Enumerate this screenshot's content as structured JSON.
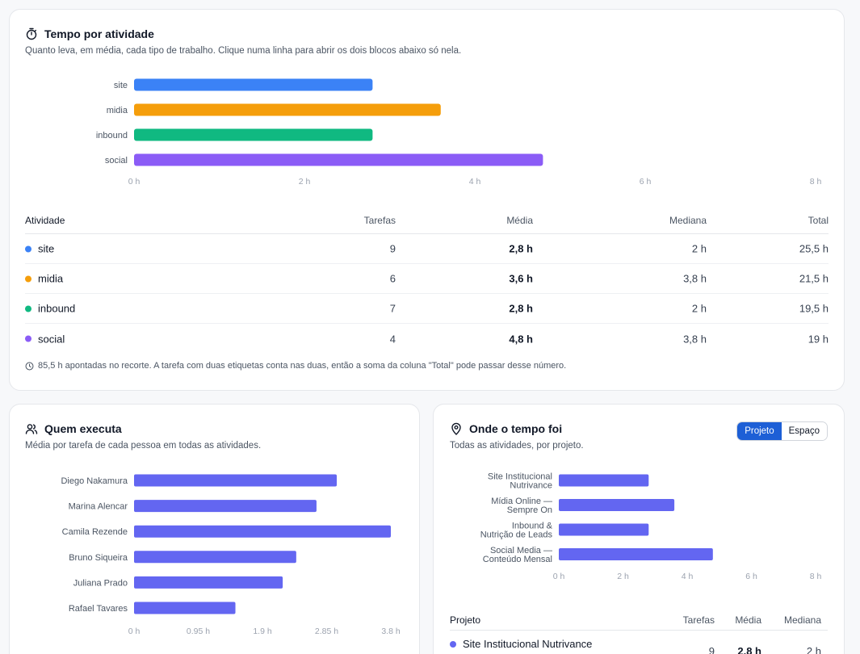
{
  "time_card": {
    "title": "Tempo por atividade",
    "subtitle": "Quanto leva, em média, cada tipo de trabalho. Clique numa linha para abrir os dois blocos abaixo só nela.",
    "icon": "stopwatch-icon",
    "table": {
      "headers": {
        "activity": "Atividade",
        "tasks": "Tarefas",
        "avg": "Média",
        "median": "Mediana",
        "total": "Total"
      },
      "rows": [
        {
          "name": "site",
          "color": "#3b82f6",
          "tasks": "9",
          "avg": "2,8 h",
          "median": "2 h",
          "total": "25,5 h"
        },
        {
          "name": "midia",
          "color": "#f59e0b",
          "tasks": "6",
          "avg": "3,6 h",
          "median": "3,8 h",
          "total": "21,5 h"
        },
        {
          "name": "inbound",
          "color": "#10b981",
          "tasks": "7",
          "avg": "2,8 h",
          "median": "2 h",
          "total": "19,5 h"
        },
        {
          "name": "social",
          "color": "#8b5cf6",
          "tasks": "4",
          "avg": "4,8 h",
          "median": "3,8 h",
          "total": "19 h"
        }
      ]
    },
    "footnote": "85,5 h apontadas no recorte. A tarefa com duas etiquetas conta nas duas, então a soma da coluna \"Total\" pode passar desse número."
  },
  "people_card": {
    "title": "Quem executa",
    "subtitle": "Média por tarefa de cada pessoa em todas as atividades.",
    "icon": "users-icon"
  },
  "where_card": {
    "title": "Onde o tempo foi",
    "subtitle": "Todas as atividades, por projeto.",
    "icon": "map-pin-icon",
    "toggle": {
      "option_project": "Projeto",
      "option_space": "Espaço",
      "selected": "Projeto"
    },
    "table": {
      "headers": {
        "project": "Projeto",
        "tasks": "Tarefas",
        "avg": "Média",
        "median": "Mediana"
      },
      "rows": [
        {
          "name": "Site Institucional Nutrivance",
          "color": "#6366f1",
          "tasks": "9",
          "avg": "2,8 h",
          "median": "2 h"
        }
      ]
    }
  },
  "chart_data": [
    {
      "type": "bar",
      "orientation": "horizontal",
      "categories": [
        "site",
        "midia",
        "inbound",
        "social"
      ],
      "values": [
        2.8,
        3.6,
        2.8,
        4.8
      ],
      "colors": [
        "#3b82f6",
        "#f59e0b",
        "#10b981",
        "#8b5cf6"
      ],
      "xlim": [
        0,
        8
      ],
      "ticks": [
        0,
        2,
        4,
        6,
        8
      ],
      "tick_labels": [
        "0 h",
        "2 h",
        "4 h",
        "6 h",
        "8 h"
      ],
      "grid": false
    },
    {
      "type": "bar",
      "orientation": "horizontal",
      "categories": [
        "Diego Nakamura",
        "Marina Alencar",
        "Camila Rezende",
        "Bruno Siqueira",
        "Juliana Prado",
        "Rafael Tavares"
      ],
      "values": [
        3.0,
        2.7,
        3.8,
        2.4,
        2.2,
        1.5
      ],
      "colors": [
        "#6366f1"
      ],
      "xlim": [
        0,
        3.8
      ],
      "ticks": [
        0,
        0.95,
        1.9,
        2.85,
        3.8
      ],
      "tick_labels": [
        "0 h",
        "0.95 h",
        "1.9 h",
        "2.85 h",
        "3.8 h"
      ],
      "grid": false
    },
    {
      "type": "bar",
      "orientation": "horizontal",
      "categories": [
        [
          "Site Institucional",
          "Nutrivance"
        ],
        [
          "Mídia Online —",
          "Sempre On"
        ],
        [
          "Inbound &",
          "Nutrição de Leads"
        ],
        [
          "Social Media —",
          "Conteúdo Mensal"
        ]
      ],
      "values": [
        2.8,
        3.6,
        2.8,
        4.8
      ],
      "colors": [
        "#6366f1"
      ],
      "xlim": [
        0,
        8
      ],
      "ticks": [
        0,
        2,
        4,
        6,
        8
      ],
      "tick_labels": [
        "0 h",
        "2 h",
        "4 h",
        "6 h",
        "8 h"
      ],
      "grid": false
    }
  ]
}
